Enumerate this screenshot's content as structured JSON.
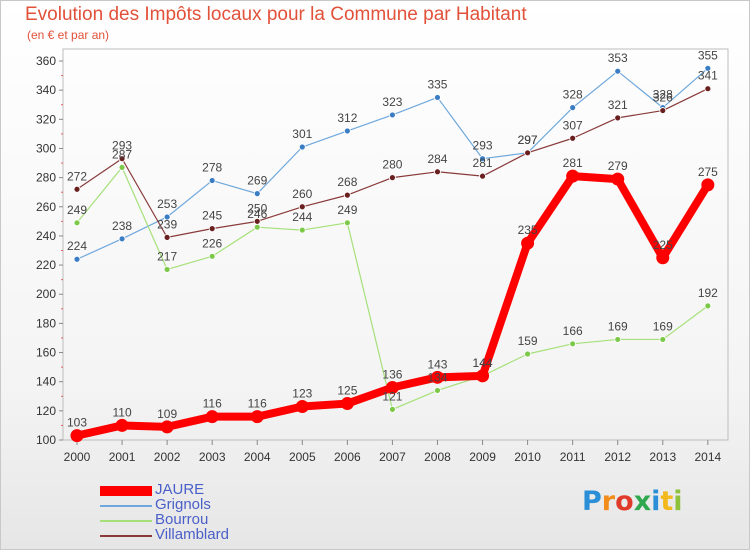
{
  "title": "Evolution des Impôts locaux pour la Commune par Habitant",
  "subtitle": "(en € et par an)",
  "logo": {
    "text": "Proxiti",
    "letters": [
      "P",
      "r",
      "o",
      "x",
      "i",
      "t",
      "i"
    ],
    "colors": [
      "#2a8fd6",
      "#f28c1c",
      "#e03b2a",
      "#2fa84f",
      "#2a8fd6",
      "#f2b81c",
      "#8fc23c"
    ]
  },
  "chart_data": {
    "type": "line",
    "title": "Evolution des Impôts locaux pour la Commune par Habitant",
    "subtitle": "(en € et par an)",
    "x": [
      "2000",
      "2001",
      "2002",
      "2003",
      "2004",
      "2005",
      "2006",
      "2007",
      "2008",
      "2009",
      "2010",
      "2011",
      "2012",
      "2013",
      "2014"
    ],
    "ylim": [
      100,
      360
    ],
    "yticks": [
      100,
      120,
      140,
      160,
      180,
      200,
      220,
      240,
      260,
      280,
      300,
      320,
      340,
      360
    ],
    "grid": false,
    "legend_position": "bottom-left",
    "series": [
      {
        "name": "Grignols",
        "color": "#6fa8dc",
        "marker": "#3b7dc4",
        "width": 1.2,
        "values": [
          224,
          238,
          253,
          278,
          269,
          301,
          312,
          323,
          335,
          293,
          297,
          328,
          353,
          328,
          355
        ]
      },
      {
        "name": "Bourrou",
        "color": "#a6e07a",
        "marker": "#7cc94a",
        "width": 1.2,
        "values": [
          249,
          287,
          217,
          226,
          246,
          244,
          249,
          121,
          134,
          144,
          159,
          166,
          169,
          169,
          192
        ]
      },
      {
        "name": "Villamblard",
        "color": "#8a3a3a",
        "marker": "#6a1f1f",
        "width": 1.2,
        "values": [
          272,
          293,
          239,
          245,
          250,
          260,
          268,
          280,
          284,
          281,
          297,
          307,
          321,
          326,
          341
        ]
      },
      {
        "name": "JAURE",
        "color": "#ff0000",
        "marker": "#ff0000",
        "width": 8,
        "values": [
          103,
          110,
          109,
          116,
          116,
          123,
          125,
          136,
          143,
          144,
          235,
          281,
          279,
          225,
          275
        ]
      }
    ],
    "legend_order": [
      "JAURE",
      "Grignols",
      "Bourrou",
      "Villamblard"
    ]
  }
}
